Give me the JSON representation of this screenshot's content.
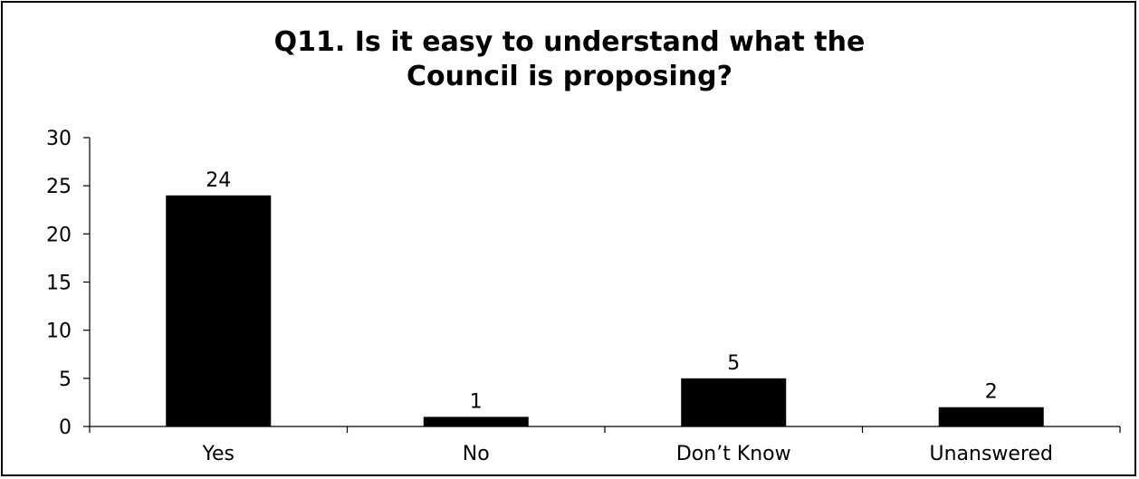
{
  "chart_data": {
    "type": "bar",
    "title_lines": [
      "Q11. Is it easy to understand what the",
      "Council is proposing?"
    ],
    "title": "Q11. Is it easy to understand what the Council is proposing?",
    "categories": [
      "Yes",
      "No",
      "Don’t Know",
      "Unanswered"
    ],
    "values": [
      24,
      1,
      5,
      2
    ],
    "data_labels": [
      "24",
      "1",
      "5",
      "2"
    ],
    "ylim": [
      0,
      30
    ],
    "yticks": [
      0,
      5,
      10,
      15,
      20,
      25,
      30
    ],
    "ytick_labels": [
      "0",
      "5",
      "10",
      "15",
      "20",
      "25",
      "30"
    ],
    "xlabel": "",
    "ylabel": "",
    "grid": false,
    "legend": "none",
    "bar_color": "#000000"
  }
}
